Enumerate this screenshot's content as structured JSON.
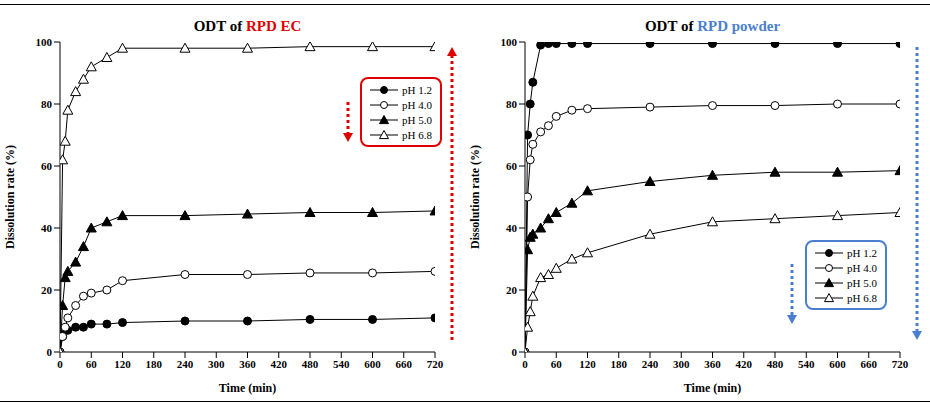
{
  "chart_data": [
    {
      "type": "line",
      "title": "ODT of RPD EC",
      "color": "#e00000",
      "legend": "upper right",
      "x_label": "Time (min)",
      "y_label": "Dissolution rate (%)",
      "x": [
        0,
        5,
        10,
        15,
        30,
        45,
        60,
        90,
        120,
        240,
        360,
        480,
        600,
        720
      ],
      "xlim": [
        0,
        720
      ],
      "xticks": [
        0,
        60,
        120,
        180,
        240,
        300,
        360,
        420,
        480,
        540,
        600,
        660,
        720
      ],
      "ylim": [
        0,
        100
      ],
      "yticks": [
        0,
        20,
        40,
        60,
        80,
        100
      ],
      "series": [
        {
          "name": "pH 1.2",
          "color": "#000000",
          "marker": "circle",
          "values": [
            0,
            5,
            7,
            7,
            8,
            8,
            9,
            9,
            9.5,
            10,
            10,
            10.5,
            10.5,
            11
          ]
        },
        {
          "name": "pH 4.0",
          "color": "#000000",
          "marker": "circle_open",
          "values": [
            0,
            5,
            8,
            11,
            15,
            18,
            19,
            20,
            23,
            25,
            25,
            25.5,
            25.5,
            26
          ]
        },
        {
          "name": "pH 5.0",
          "color": "#000000",
          "marker": "triangle",
          "values": [
            0,
            15,
            24,
            26,
            29,
            34,
            40,
            42,
            44,
            44,
            44.5,
            45,
            45,
            45.5
          ]
        },
        {
          "name": "pH 6.8",
          "color": "#000000",
          "marker": "triangle_open",
          "values": [
            0,
            62,
            68,
            78,
            84,
            88,
            92,
            95,
            98,
            98,
            98,
            98.5,
            98.5,
            98.5
          ]
        }
      ]
    },
    {
      "type": "line",
      "title": "ODT of RPD powder",
      "color": "#4a7fd0",
      "legend": "lower right",
      "x_label": "Time (min)",
      "y_label": "Dissolution rate (%)",
      "x": [
        0,
        5,
        10,
        15,
        30,
        45,
        60,
        90,
        120,
        240,
        360,
        480,
        600,
        720
      ],
      "xlim": [
        0,
        720
      ],
      "xticks": [
        0,
        60,
        120,
        180,
        240,
        300,
        360,
        420,
        480,
        540,
        600,
        660,
        720
      ],
      "ylim": [
        0,
        100
      ],
      "yticks": [
        0,
        20,
        40,
        60,
        80,
        100
      ],
      "series": [
        {
          "name": "pH 1.2",
          "color": "#000000",
          "marker": "circle",
          "values": [
            0,
            70,
            80,
            87,
            99,
            99.5,
            99.5,
            99.5,
            99.5,
            99.5,
            99.5,
            99.5,
            99.5,
            99.5
          ]
        },
        {
          "name": "pH 4.0",
          "color": "#000000",
          "marker": "circle_open",
          "values": [
            0,
            50,
            62,
            67,
            71,
            73,
            76,
            78,
            78.5,
            79,
            79.5,
            79.5,
            80,
            80
          ]
        },
        {
          "name": "pH 5.0",
          "color": "#000000",
          "marker": "triangle",
          "values": [
            0,
            33,
            37,
            38,
            40,
            43,
            45,
            48,
            52,
            55,
            57,
            58,
            58,
            58.5
          ]
        },
        {
          "name": "pH 6.8",
          "color": "#000000",
          "marker": "triangle_open",
          "values": [
            0,
            8,
            13,
            18,
            24,
            25,
            27,
            30,
            32,
            38,
            42,
            43,
            44,
            45
          ]
        }
      ]
    }
  ]
}
